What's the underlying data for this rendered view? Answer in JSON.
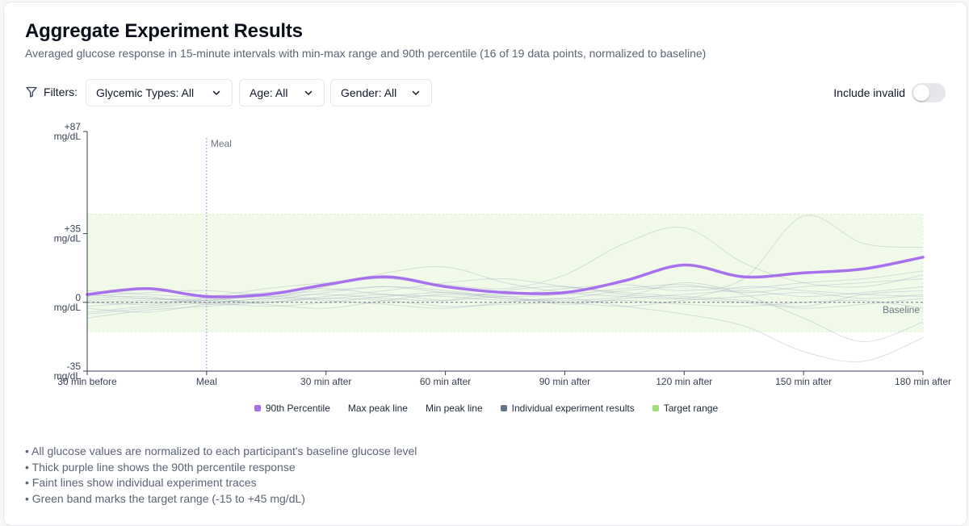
{
  "header": {
    "title": "Aggregate Experiment Results",
    "subtitle": "Averaged glucose response in 15-minute intervals with min-max range and 90th percentile (16 of 19 data points, normalized to baseline)"
  },
  "filters": {
    "label": "Filters:",
    "glycemic": "Glycemic Types: All",
    "age": "Age: All",
    "gender": "Gender: All",
    "include_invalid_label": "Include invalid",
    "include_invalid": false
  },
  "chart_data": {
    "type": "line",
    "y_ticks": [
      {
        "value": 87,
        "line1": "+87",
        "line2": "mg/dL"
      },
      {
        "value": 35,
        "line1": "+35",
        "line2": "mg/dL"
      },
      {
        "value": 0,
        "line1": "0",
        "line2": "mg/dL"
      },
      {
        "value": -35,
        "line1": "-35",
        "line2": "mg/dL"
      }
    ],
    "x_ticks": [
      {
        "value": -30,
        "label": "30 min before"
      },
      {
        "value": 0,
        "label": "Meal"
      },
      {
        "value": 30,
        "label": "30 min after"
      },
      {
        "value": 60,
        "label": "60 min after"
      },
      {
        "value": 90,
        "label": "90 min after"
      },
      {
        "value": 120,
        "label": "120 min after"
      },
      {
        "value": 150,
        "label": "150 min after"
      },
      {
        "value": 180,
        "label": "180 min after"
      }
    ],
    "xlim": [
      -30,
      180
    ],
    "ylim": [
      -35,
      87
    ],
    "meal_marker": {
      "x": 0,
      "label": "Meal"
    },
    "baseline": {
      "y": 0,
      "label": "Baseline"
    },
    "target_range": [
      -15,
      45
    ],
    "percentile_90": {
      "name": "90th Percentile",
      "color": "#a970ee",
      "x": [
        -30,
        -15,
        0,
        15,
        30,
        45,
        60,
        75,
        90,
        105,
        120,
        135,
        150,
        165,
        180
      ],
      "y": [
        4,
        7,
        3,
        4,
        9,
        13,
        8,
        5,
        5,
        11,
        19,
        13,
        15,
        17,
        23
      ]
    },
    "individual_traces": [
      {
        "x": [
          -30,
          -15,
          0,
          15,
          30,
          45,
          60,
          75,
          90,
          105,
          120,
          135,
          150,
          165,
          180
        ],
        "y": [
          -5,
          -2,
          1,
          3,
          2,
          4,
          1,
          3,
          -1,
          2,
          4,
          6,
          3,
          5,
          8
        ]
      },
      {
        "x": [
          -30,
          -15,
          0,
          15,
          30,
          45,
          60,
          75,
          90,
          105,
          120,
          135,
          150,
          165,
          180
        ],
        "y": [
          2,
          3,
          -1,
          1,
          5,
          8,
          6,
          3,
          4,
          7,
          9,
          5,
          8,
          10,
          12
        ]
      },
      {
        "x": [
          -30,
          -15,
          0,
          15,
          30,
          45,
          60,
          75,
          90,
          105,
          120,
          135,
          150,
          165,
          180
        ],
        "y": [
          -8,
          -4,
          -2,
          0,
          3,
          6,
          10,
          12,
          8,
          5,
          3,
          1,
          -2,
          4,
          6
        ]
      },
      {
        "x": [
          -30,
          -15,
          0,
          15,
          30,
          45,
          60,
          75,
          90,
          105,
          120,
          135,
          150,
          165,
          180
        ],
        "y": [
          0,
          1,
          2,
          -1,
          -3,
          1,
          4,
          2,
          0,
          -2,
          1,
          3,
          5,
          2,
          4
        ]
      },
      {
        "x": [
          -30,
          -15,
          0,
          15,
          30,
          45,
          60,
          75,
          90,
          105,
          120,
          135,
          150,
          165,
          180
        ],
        "y": [
          6,
          4,
          3,
          7,
          10,
          12,
          9,
          7,
          14,
          30,
          38,
          20,
          10,
          8,
          14
        ]
      },
      {
        "x": [
          -30,
          -15,
          0,
          15,
          30,
          45,
          60,
          75,
          90,
          105,
          120,
          135,
          150,
          165,
          180
        ],
        "y": [
          -3,
          -5,
          -1,
          2,
          1,
          -1,
          -3,
          0,
          2,
          -2,
          -6,
          -12,
          -25,
          -30,
          -18
        ]
      },
      {
        "x": [
          -30,
          -15,
          0,
          15,
          30,
          45,
          60,
          75,
          90,
          105,
          120,
          135,
          150,
          165,
          180
        ],
        "y": [
          3,
          5,
          6,
          4,
          6,
          8,
          5,
          4,
          7,
          9,
          6,
          12,
          44,
          30,
          28
        ]
      },
      {
        "x": [
          -30,
          -15,
          0,
          15,
          30,
          45,
          60,
          75,
          90,
          105,
          120,
          135,
          150,
          165,
          180
        ],
        "y": [
          -2,
          0,
          1,
          3,
          4,
          2,
          1,
          6,
          8,
          4,
          2,
          0,
          -3,
          -1,
          2
        ]
      },
      {
        "x": [
          -30,
          -15,
          0,
          15,
          30,
          45,
          60,
          75,
          90,
          105,
          120,
          135,
          150,
          165,
          180
        ],
        "y": [
          1,
          2,
          0,
          -2,
          0,
          3,
          5,
          2,
          1,
          3,
          10,
          4,
          -8,
          -20,
          -10
        ]
      },
      {
        "x": [
          -30,
          -15,
          0,
          15,
          30,
          45,
          60,
          75,
          90,
          105,
          120,
          135,
          150,
          165,
          180
        ],
        "y": [
          -6,
          -3,
          0,
          2,
          8,
          15,
          18,
          10,
          5,
          3,
          2,
          8,
          6,
          4,
          3
        ]
      },
      {
        "x": [
          -30,
          -15,
          0,
          15,
          30,
          45,
          60,
          75,
          90,
          105,
          120,
          135,
          150,
          165,
          180
        ],
        "y": [
          4,
          2,
          1,
          0,
          2,
          1,
          -2,
          -1,
          0,
          1,
          -1,
          -2,
          0,
          1,
          -3
        ]
      },
      {
        "x": [
          -30,
          -15,
          0,
          15,
          30,
          45,
          60,
          75,
          90,
          105,
          120,
          135,
          150,
          165,
          180
        ],
        "y": [
          0,
          -1,
          2,
          5,
          7,
          4,
          3,
          1,
          2,
          6,
          8,
          7,
          10,
          12,
          16
        ]
      }
    ]
  },
  "legend": [
    {
      "label": "90th Percentile",
      "color": "#a970ee"
    },
    {
      "label": "Max peak line",
      "color": null
    },
    {
      "label": "Min peak line",
      "color": null
    },
    {
      "label": "Individual experiment results",
      "color": "#64748b"
    },
    {
      "label": "Target range",
      "color": "#a3e07a"
    }
  ],
  "notes": [
    "All glucose values are normalized to each participant's baseline glucose level",
    "Thick purple line shows the 90th percentile response",
    "Faint lines show individual experiment traces",
    "Green band marks the target range (-15 to +45 mg/dL)"
  ]
}
